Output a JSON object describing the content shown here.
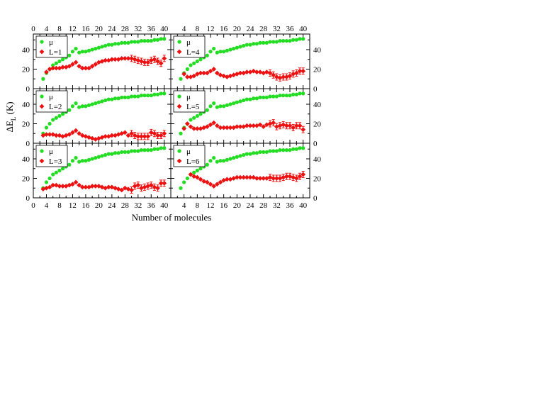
{
  "chart_data": {
    "type": "scatter",
    "shared": {
      "xlabel": "Number of molecules",
      "ylabel_main": "ΔE",
      "ylabel_sub": "L",
      "ylabel_unit": " (K)",
      "xlim": [
        0,
        42
      ],
      "ylim": [
        0,
        56
      ],
      "xticks": [
        0,
        4,
        8,
        12,
        16,
        20,
        24,
        28,
        32,
        36,
        40
      ],
      "yticks": [
        0,
        20,
        40
      ],
      "colors": {
        "mu": "#22dd22",
        "L": "#ee1111"
      },
      "legend_placement": "top-left",
      "grid": false
    },
    "panels": [
      {
        "legend": [
          "μ",
          "L=1"
        ],
        "series": [
          {
            "name": "μ",
            "marker": "circle",
            "x": [
              3,
              4,
              5,
              6,
              7,
              8,
              9,
              10,
              11,
              12,
              13,
              14,
              15,
              16,
              17,
              18,
              19,
              20,
              21,
              22,
              23,
              24,
              25,
              26,
              27,
              28,
              29,
              30,
              31,
              32,
              33,
              34,
              35,
              36,
              37,
              38,
              39,
              40
            ],
            "y": [
              10,
              16,
              20,
              24,
              26,
              28,
              30,
              32,
              34,
              38,
              41,
              37,
              38,
              38,
              39,
              40,
              41,
              42,
              43,
              44,
              45,
              45,
              46,
              46,
              47,
              47,
              47,
              48,
              48,
              48,
              49,
              49,
              49,
              49,
              50,
              50,
              51,
              51
            ]
          },
          {
            "name": "L=1",
            "marker": "diamond",
            "x": [
              4,
              5,
              6,
              7,
              8,
              9,
              10,
              11,
              12,
              13,
              14,
              15,
              16,
              17,
              18,
              19,
              20,
              21,
              22,
              23,
              24,
              25,
              26,
              27,
              28,
              29,
              30,
              31,
              32,
              33,
              34,
              35,
              36,
              37,
              38,
              39,
              40
            ],
            "y": [
              17,
              20,
              21,
              21,
              21,
              22,
              22,
              23,
              25,
              27,
              23,
              21,
              21,
              21,
              23,
              25,
              27,
              28,
              29,
              29,
              30,
              30,
              30,
              31,
              31,
              31,
              31,
              30,
              29,
              28,
              27,
              27,
              29,
              30,
              28,
              26,
              31
            ]
          }
        ]
      },
      {
        "legend": [
          "μ",
          "L=4"
        ],
        "series": [
          {
            "name": "μ",
            "marker": "circle",
            "x": [
              3,
              4,
              5,
              6,
              7,
              8,
              9,
              10,
              11,
              12,
              13,
              14,
              15,
              16,
              17,
              18,
              19,
              20,
              21,
              22,
              23,
              24,
              25,
              26,
              27,
              28,
              29,
              30,
              31,
              32,
              33,
              34,
              35,
              36,
              37,
              38,
              39,
              40
            ],
            "y": [
              10,
              16,
              20,
              24,
              26,
              28,
              30,
              32,
              34,
              38,
              41,
              37,
              38,
              38,
              39,
              40,
              41,
              42,
              43,
              44,
              45,
              45,
              46,
              46,
              47,
              47,
              47,
              48,
              48,
              48,
              49,
              49,
              49,
              49,
              50,
              50,
              51,
              51
            ]
          },
          {
            "name": "L=4",
            "marker": "diamond",
            "x": [
              4,
              5,
              6,
              7,
              8,
              9,
              10,
              11,
              12,
              13,
              14,
              15,
              16,
              17,
              18,
              19,
              20,
              21,
              22,
              23,
              24,
              25,
              26,
              27,
              28,
              29,
              30,
              31,
              32,
              33,
              34,
              35,
              36,
              37,
              38,
              39,
              40
            ],
            "y": [
              15,
              12,
              12,
              13,
              15,
              16,
              16,
              16,
              18,
              20,
              16,
              14,
              13,
              12,
              13,
              14,
              15,
              16,
              16,
              17,
              17,
              18,
              17,
              17,
              16,
              17,
              16,
              14,
              12,
              11,
              12,
              12,
              13,
              15,
              16,
              18,
              18
            ]
          }
        ]
      },
      {
        "legend": [
          "μ",
          "L=2"
        ],
        "series": [
          {
            "name": "μ",
            "marker": "circle",
            "x": [
              3,
              4,
              5,
              6,
              7,
              8,
              9,
              10,
              11,
              12,
              13,
              14,
              15,
              16,
              17,
              18,
              19,
              20,
              21,
              22,
              23,
              24,
              25,
              26,
              27,
              28,
              29,
              30,
              31,
              32,
              33,
              34,
              35,
              36,
              37,
              38,
              39,
              40
            ],
            "y": [
              10,
              16,
              20,
              24,
              26,
              28,
              30,
              32,
              34,
              38,
              41,
              37,
              38,
              38,
              39,
              40,
              41,
              42,
              43,
              44,
              45,
              45,
              46,
              46,
              47,
              47,
              47,
              48,
              48,
              48,
              49,
              49,
              49,
              49,
              50,
              50,
              51,
              51
            ]
          },
          {
            "name": "L=2",
            "marker": "diamond",
            "x": [
              3,
              4,
              5,
              6,
              7,
              8,
              9,
              10,
              11,
              12,
              13,
              14,
              15,
              16,
              17,
              18,
              19,
              20,
              21,
              22,
              23,
              24,
              25,
              26,
              27,
              28,
              29,
              30,
              31,
              32,
              33,
              34,
              35,
              36,
              37,
              38,
              39,
              40
            ],
            "y": [
              8,
              9,
              9,
              9,
              8,
              8,
              7,
              8,
              9,
              11,
              13,
              10,
              8,
              7,
              6,
              5,
              4,
              5,
              6,
              7,
              7,
              8,
              8,
              9,
              10,
              11,
              8,
              10,
              8,
              7,
              7,
              7,
              7,
              11,
              10,
              8,
              8,
              10
            ]
          }
        ]
      },
      {
        "legend": [
          "μ",
          "L=5"
        ],
        "series": [
          {
            "name": "μ",
            "marker": "circle",
            "x": [
              3,
              4,
              5,
              6,
              7,
              8,
              9,
              10,
              11,
              12,
              13,
              14,
              15,
              16,
              17,
              18,
              19,
              20,
              21,
              22,
              23,
              24,
              25,
              26,
              27,
              28,
              29,
              30,
              31,
              32,
              33,
              34,
              35,
              36,
              37,
              38,
              39,
              40
            ],
            "y": [
              10,
              16,
              20,
              24,
              26,
              28,
              30,
              32,
              34,
              38,
              41,
              37,
              38,
              38,
              39,
              40,
              41,
              42,
              43,
              44,
              45,
              45,
              46,
              46,
              47,
              47,
              47,
              48,
              48,
              48,
              49,
              49,
              49,
              49,
              50,
              50,
              51,
              51
            ]
          },
          {
            "name": "L=5",
            "marker": "diamond",
            "x": [
              4,
              5,
              6,
              7,
              8,
              9,
              10,
              11,
              12,
              13,
              14,
              15,
              16,
              17,
              18,
              19,
              20,
              21,
              22,
              23,
              24,
              25,
              26,
              27,
              28,
              29,
              30,
              31,
              32,
              33,
              34,
              35,
              36,
              37,
              38,
              39,
              40
            ],
            "y": [
              15,
              20,
              17,
              15,
              15,
              15,
              16,
              17,
              19,
              21,
              18,
              16,
              16,
              16,
              16,
              16,
              17,
              17,
              17,
              18,
              18,
              18,
              18,
              19,
              17,
              19,
              20,
              21,
              17,
              18,
              19,
              18,
              18,
              16,
              18,
              18,
              14
            ]
          }
        ]
      },
      {
        "legend": [
          "μ",
          "L=3"
        ],
        "series": [
          {
            "name": "μ",
            "marker": "circle",
            "x": [
              3,
              4,
              5,
              6,
              7,
              8,
              9,
              10,
              11,
              12,
              13,
              14,
              15,
              16,
              17,
              18,
              19,
              20,
              21,
              22,
              23,
              24,
              25,
              26,
              27,
              28,
              29,
              30,
              31,
              32,
              33,
              34,
              35,
              36,
              37,
              38,
              39,
              40
            ],
            "y": [
              10,
              16,
              20,
              24,
              26,
              28,
              30,
              32,
              34,
              38,
              41,
              37,
              38,
              38,
              39,
              40,
              41,
              42,
              43,
              44,
              45,
              45,
              46,
              46,
              47,
              47,
              47,
              48,
              48,
              48,
              49,
              49,
              49,
              49,
              50,
              50,
              51,
              51
            ]
          },
          {
            "name": "L=3",
            "marker": "diamond",
            "x": [
              3,
              4,
              5,
              6,
              7,
              8,
              9,
              10,
              11,
              12,
              13,
              14,
              15,
              16,
              17,
              18,
              19,
              20,
              21,
              22,
              23,
              24,
              25,
              26,
              27,
              28,
              29,
              30,
              31,
              32,
              33,
              34,
              35,
              36,
              37,
              38,
              39,
              40
            ],
            "y": [
              9,
              10,
              11,
              13,
              13,
              12,
              12,
              12,
              13,
              14,
              16,
              13,
              11,
              11,
              11,
              12,
              12,
              12,
              11,
              10,
              11,
              11,
              10,
              9,
              8,
              10,
              9,
              8,
              12,
              13,
              10,
              11,
              12,
              13,
              11,
              10,
              15,
              15
            ]
          }
        ]
      },
      {
        "legend": [
          "μ",
          "L=6"
        ],
        "series": [
          {
            "name": "μ",
            "marker": "circle",
            "x": [
              3,
              4,
              5,
              6,
              7,
              8,
              9,
              10,
              11,
              12,
              13,
              14,
              15,
              16,
              17,
              18,
              19,
              20,
              21,
              22,
              23,
              24,
              25,
              26,
              27,
              28,
              29,
              30,
              31,
              32,
              33,
              34,
              35,
              36,
              37,
              38,
              39,
              40
            ],
            "y": [
              10,
              16,
              20,
              24,
              26,
              28,
              30,
              32,
              34,
              38,
              41,
              37,
              38,
              38,
              39,
              40,
              41,
              42,
              43,
              44,
              45,
              45,
              46,
              46,
              47,
              47,
              47,
              48,
              48,
              48,
              49,
              49,
              49,
              49,
              50,
              50,
              51,
              51
            ]
          },
          {
            "name": "L=6",
            "marker": "diamond",
            "x": [
              6,
              7,
              8,
              9,
              10,
              11,
              12,
              13,
              14,
              15,
              16,
              17,
              18,
              19,
              20,
              21,
              22,
              23,
              24,
              25,
              26,
              27,
              28,
              29,
              30,
              31,
              32,
              33,
              34,
              35,
              36,
              37,
              38,
              39,
              40
            ],
            "y": [
              24,
              22,
              21,
              19,
              17,
              16,
              14,
              12,
              14,
              16,
              18,
              19,
              19,
              20,
              21,
              21,
              21,
              21,
              21,
              21,
              20,
              20,
              20,
              20,
              21,
              20,
              20,
              20,
              21,
              22,
              22,
              21,
              20,
              22,
              24
            ]
          }
        ]
      }
    ]
  }
}
